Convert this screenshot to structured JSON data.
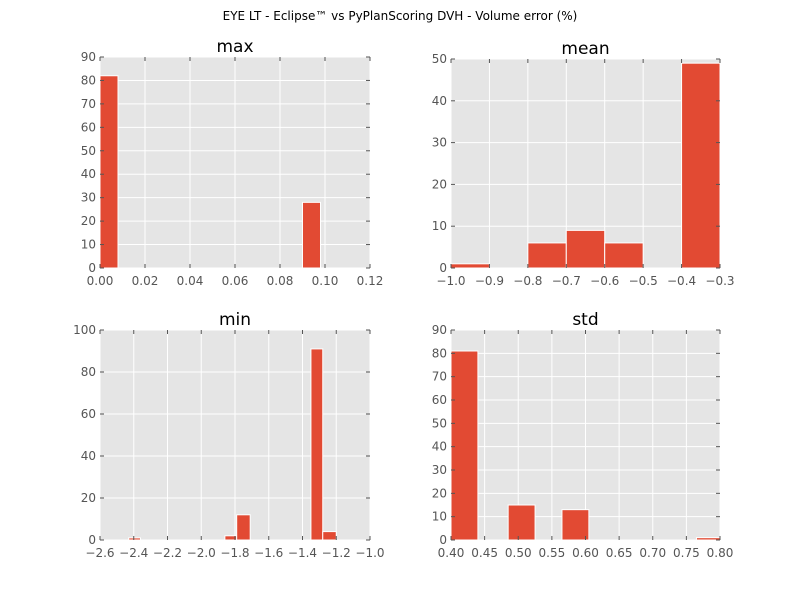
{
  "title": "EYE LT - Eclipse™ vs PyPlanScoring DVH - Volume error (%)",
  "colors": {
    "bar": "#E24A33",
    "panel": "#E5E5E5",
    "grid": "#FFFFFF",
    "tick_label": "#555555"
  },
  "chart_data": [
    {
      "type": "bar",
      "title": "max",
      "xlim": [
        0.0,
        0.12
      ],
      "ylim": [
        0,
        90
      ],
      "xticks": [
        0.0,
        0.02,
        0.04,
        0.06,
        0.08,
        0.1,
        0.12
      ],
      "xtick_labels": [
        "0.00",
        "0.02",
        "0.04",
        "0.06",
        "0.08",
        "0.10",
        "0.12"
      ],
      "yticks": [
        0,
        10,
        20,
        30,
        40,
        50,
        60,
        70,
        80,
        90
      ],
      "ytick_labels": [
        "0",
        "10",
        "20",
        "30",
        "40",
        "50",
        "60",
        "70",
        "80",
        "90"
      ],
      "bins": [
        {
          "x0": 0.0,
          "x1": 0.008,
          "value": 82
        },
        {
          "x0": 0.09,
          "x1": 0.098,
          "value": 28
        }
      ]
    },
    {
      "type": "bar",
      "title": "mean",
      "xlim": [
        -1.0,
        -0.3
      ],
      "ylim": [
        0,
        50
      ],
      "xticks": [
        -1.0,
        -0.9,
        -0.8,
        -0.7,
        -0.6,
        -0.5,
        -0.4,
        -0.3
      ],
      "xtick_labels": [
        "−1.0",
        "−0.9",
        "−0.8",
        "−0.7",
        "−0.6",
        "−0.5",
        "−0.4",
        "−0.3"
      ],
      "yticks": [
        0,
        10,
        20,
        30,
        40,
        50
      ],
      "ytick_labels": [
        "0",
        "10",
        "20",
        "30",
        "40",
        "50"
      ],
      "bins": [
        {
          "x0": -1.0,
          "x1": -0.9,
          "value": 1
        },
        {
          "x0": -0.9,
          "x1": -0.8,
          "value": 0
        },
        {
          "x0": -0.8,
          "x1": -0.7,
          "value": 6
        },
        {
          "x0": -0.7,
          "x1": -0.6,
          "value": 9
        },
        {
          "x0": -0.6,
          "x1": -0.5,
          "value": 6
        },
        {
          "x0": -0.5,
          "x1": -0.4,
          "value": 0
        },
        {
          "x0": -0.4,
          "x1": -0.3,
          "value": 49
        }
      ]
    },
    {
      "type": "bar",
      "title": "min",
      "xlim": [
        -2.6,
        -1.0
      ],
      "ylim": [
        0,
        100
      ],
      "xticks": [
        -2.6,
        -2.4,
        -2.2,
        -2.0,
        -1.8,
        -1.6,
        -1.4,
        -1.2,
        -1.0
      ],
      "xtick_labels": [
        "−2.6",
        "−2.4",
        "−2.2",
        "−2.0",
        "−1.8",
        "−1.6",
        "−1.4",
        "−1.2",
        "−1.0"
      ],
      "yticks": [
        0,
        20,
        40,
        60,
        80,
        100
      ],
      "ytick_labels": [
        "0",
        "20",
        "40",
        "60",
        "80",
        "100"
      ],
      "bins": [
        {
          "x0": -2.43,
          "x1": -2.36,
          "value": 1
        },
        {
          "x0": -1.86,
          "x1": -1.79,
          "value": 2
        },
        {
          "x0": -1.79,
          "x1": -1.71,
          "value": 12
        },
        {
          "x0": -1.35,
          "x1": -1.28,
          "value": 91
        },
        {
          "x0": -1.28,
          "x1": -1.2,
          "value": 4
        }
      ]
    },
    {
      "type": "bar",
      "title": "std",
      "xlim": [
        0.4,
        0.8
      ],
      "ylim": [
        0,
        90
      ],
      "xticks": [
        0.4,
        0.45,
        0.5,
        0.55,
        0.6,
        0.65,
        0.7,
        0.75,
        0.8
      ],
      "xtick_labels": [
        "0.40",
        "0.45",
        "0.50",
        "0.55",
        "0.60",
        "0.65",
        "0.70",
        "0.75",
        "0.80"
      ],
      "yticks": [
        0,
        10,
        20,
        30,
        40,
        50,
        60,
        70,
        80,
        90
      ],
      "ytick_labels": [
        "0",
        "10",
        "20",
        "30",
        "40",
        "50",
        "60",
        "70",
        "80",
        "90"
      ],
      "bins": [
        {
          "x0": 0.4,
          "x1": 0.44,
          "value": 81
        },
        {
          "x0": 0.485,
          "x1": 0.525,
          "value": 15
        },
        {
          "x0": 0.565,
          "x1": 0.605,
          "value": 13
        },
        {
          "x0": 0.765,
          "x1": 0.8,
          "value": 1
        }
      ]
    }
  ]
}
